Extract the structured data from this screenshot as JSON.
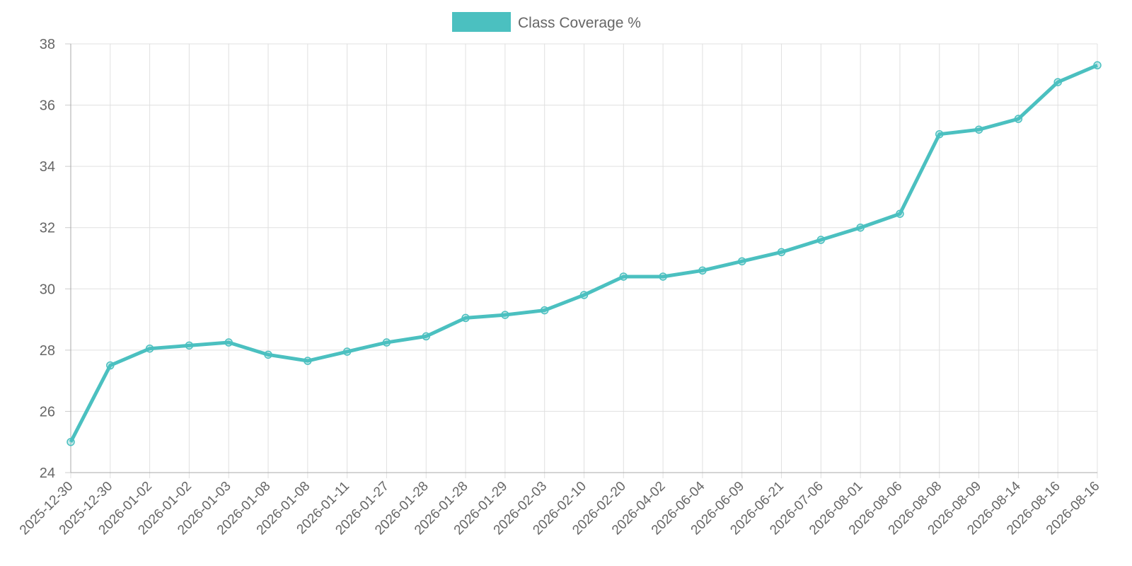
{
  "chart_data": {
    "type": "line",
    "categories": [
      "2025-12-30",
      "2025-12-30",
      "2026-01-02",
      "2026-01-02",
      "2026-01-03",
      "2026-01-08",
      "2026-01-08",
      "2026-01-11",
      "2026-01-27",
      "2026-01-28",
      "2026-01-28",
      "2026-01-29",
      "2026-02-03",
      "2026-02-10",
      "2026-02-20",
      "2026-04-02",
      "2026-06-04",
      "2026-06-09",
      "2026-06-21",
      "2026-07-06",
      "2026-08-01",
      "2026-08-06",
      "2026-08-08",
      "2026-08-09",
      "2026-08-14",
      "2026-08-16",
      "2026-08-16"
    ],
    "series": [
      {
        "name": "Class Coverage %",
        "color": "#4bc0c0",
        "values": [
          25.0,
          27.5,
          28.05,
          28.15,
          28.25,
          27.85,
          27.65,
          27.95,
          28.25,
          28.45,
          29.05,
          29.15,
          29.3,
          29.8,
          30.4,
          30.4,
          30.6,
          30.9,
          31.2,
          31.6,
          32.0,
          32.45,
          35.05,
          35.2,
          35.55,
          36.75,
          37.3
        ]
      }
    ],
    "ylim": [
      24,
      38
    ],
    "yticks": [
      24,
      26,
      28,
      30,
      32,
      34,
      36,
      38
    ],
    "grid": true,
    "legend": "top"
  }
}
